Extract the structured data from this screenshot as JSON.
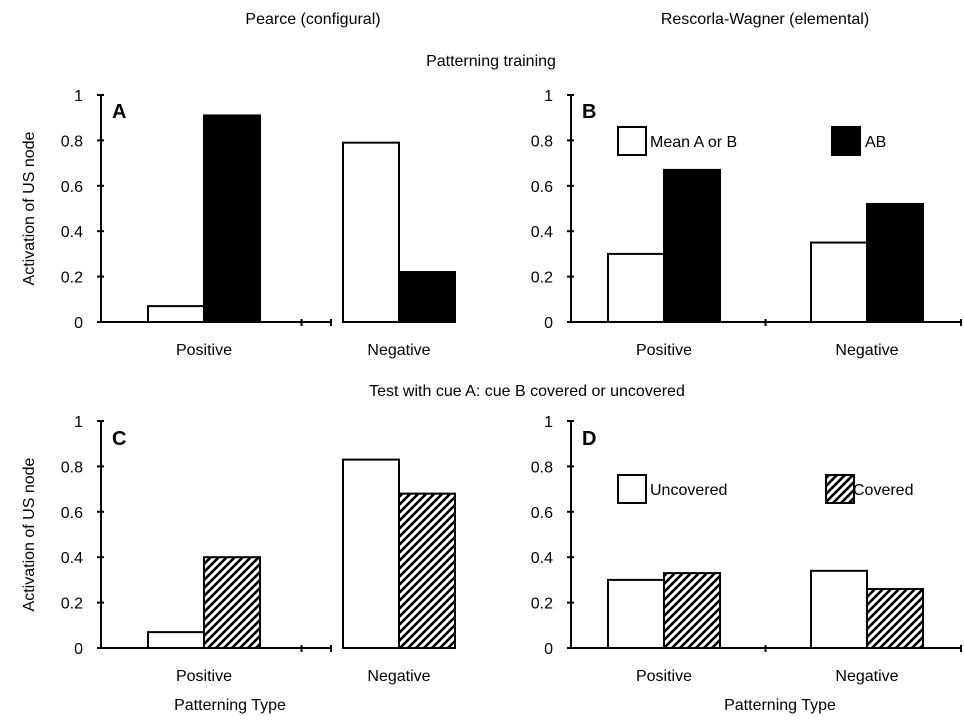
{
  "header": {
    "left_title": "Pearce (configural)",
    "right_title": "Rescorla-Wagner (elemental)",
    "top_row_title": "Patterning training",
    "bottom_row_title": "Test with cue A: cue B covered or uncovered"
  },
  "colors": {
    "bar_open": "#ffffff",
    "bar_solid": "#000000",
    "axis": "#000000"
  },
  "chart_data": [
    {
      "panel": "A",
      "type": "bar",
      "categories": [
        "Positive",
        "Negative"
      ],
      "series": [
        {
          "name": "Mean A or B",
          "fill": "open",
          "values": [
            0.07,
            0.79
          ]
        },
        {
          "name": "AB",
          "fill": "solid",
          "values": [
            0.91,
            0.22
          ]
        }
      ],
      "ylabel": "Activation of US node",
      "xlabel": "",
      "ylim": [
        0,
        1
      ],
      "yticks": [
        "0",
        "0.2",
        "0.4",
        "0.6",
        "0.8",
        "1"
      ],
      "legend": false
    },
    {
      "panel": "B",
      "type": "bar",
      "categories": [
        "Positive",
        "Negative"
      ],
      "series": [
        {
          "name": "Mean A or B",
          "fill": "open",
          "values": [
            0.3,
            0.35
          ]
        },
        {
          "name": "AB",
          "fill": "solid",
          "values": [
            0.67,
            0.52
          ]
        }
      ],
      "ylabel": "",
      "xlabel": "",
      "ylim": [
        0,
        1
      ],
      "yticks": [
        "0",
        "0.2",
        "0.4",
        "0.6",
        "0.8",
        "1"
      ],
      "legend": true
    },
    {
      "panel": "C",
      "type": "bar",
      "categories": [
        "Positive",
        "Negative"
      ],
      "series": [
        {
          "name": "Uncovered",
          "fill": "open",
          "values": [
            0.07,
            0.83
          ]
        },
        {
          "name": "Covered",
          "fill": "hatch",
          "values": [
            0.4,
            0.68
          ]
        }
      ],
      "ylabel": "Activation of US node",
      "xlabel": "Patterning Type",
      "ylim": [
        0,
        1
      ],
      "yticks": [
        "0",
        "0.2",
        "0.4",
        "0.6",
        "0.8",
        "1"
      ],
      "legend": false
    },
    {
      "panel": "D",
      "type": "bar",
      "categories": [
        "Positive",
        "Negative"
      ],
      "series": [
        {
          "name": "Uncovered",
          "fill": "open",
          "values": [
            0.3,
            0.34
          ]
        },
        {
          "name": "Covered",
          "fill": "hatch",
          "values": [
            0.33,
            0.26
          ]
        }
      ],
      "ylabel": "",
      "xlabel": "Patterning Type",
      "ylim": [
        0,
        1
      ],
      "yticks": [
        "0",
        "0.2",
        "0.4",
        "0.6",
        "0.8",
        "1"
      ],
      "legend": true
    }
  ]
}
